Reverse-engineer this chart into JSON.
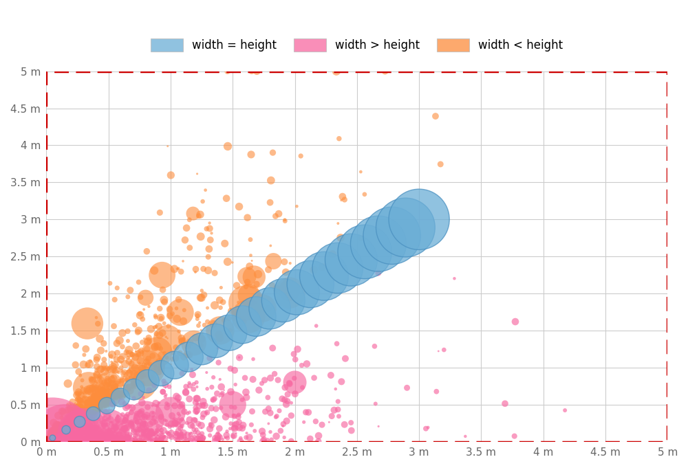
{
  "xlim": [
    0,
    5
  ],
  "ylim": [
    0,
    5
  ],
  "xticks": [
    0,
    0.5,
    1,
    1.5,
    2,
    2.5,
    3,
    3.5,
    4,
    4.5,
    5
  ],
  "yticks": [
    0,
    0.5,
    1,
    1.5,
    2,
    2.5,
    3,
    3.5,
    4,
    4.5,
    5
  ],
  "tick_labels": [
    "0 m",
    "0.5 m",
    "1 m",
    "1.5 m",
    "2 m",
    "2.5 m",
    "3 m",
    "3.5 m",
    "4 m",
    "4.5 m",
    "5 m"
  ],
  "color_equal": "#6baed6",
  "color_greater": "#f768a1",
  "color_less": "#fd8d3c",
  "alpha_equal": 0.75,
  "alpha_greater": 0.65,
  "alpha_less": 0.6,
  "border_color": "#cc0000",
  "grid_color": "#cccccc",
  "background": "#ffffff",
  "legend_labels": [
    "width = height",
    "width > height",
    "width < height"
  ],
  "legend_colors": [
    "#6baed6",
    "#f768a1",
    "#fd8d3c"
  ],
  "seed": 42
}
